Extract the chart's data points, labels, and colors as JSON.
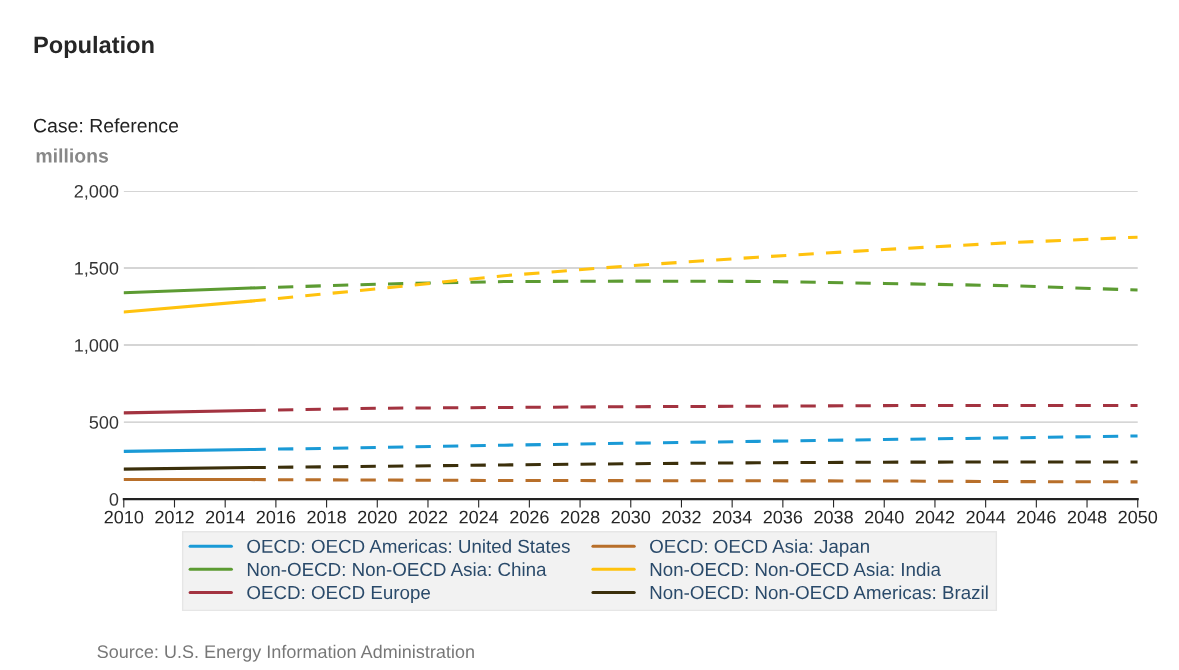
{
  "chart_data": {
    "type": "line",
    "title": "Population",
    "subtitle": "Case: Reference",
    "ylabel": "millions",
    "annotations": [
      "Source: U.S. Energy Information Administration"
    ],
    "xlim": [
      2010,
      2050
    ],
    "xticks": [
      2010,
      2012,
      2014,
      2016,
      2018,
      2020,
      2022,
      2024,
      2026,
      2028,
      2030,
      2032,
      2034,
      2036,
      2038,
      2040,
      2042,
      2044,
      2046,
      2048,
      2050
    ],
    "ylim": [
      0,
      2000
    ],
    "yticks": [
      0,
      {
        "value": 500,
        "label": "500"
      },
      {
        "value": 1000,
        "label": "1,000"
      },
      {
        "value": 1500,
        "label": "1,500"
      },
      {
        "value": 2000,
        "label": "2,000"
      }
    ],
    "grid": "y",
    "legend": "bottom",
    "marker": "none",
    "series": [
      {
        "name": "OECD: OECD Americas: United States",
        "color": "#1a9ad6",
        "line_style": "solid",
        "x": [
          2010,
          2015
        ],
        "values": [
          310,
          322
        ]
      },
      {
        "name": "OECD: OECD Asia: Japan",
        "color": "#b86f2a",
        "line_style": "solid",
        "x": [
          2010,
          2015
        ],
        "values": [
          128,
          127
        ]
      },
      {
        "name": "Non-OECD: Non-OECD Asia: China",
        "color": "#5c9b32",
        "line_style": "solid",
        "x": [
          2010,
          2015
        ],
        "values": [
          1340,
          1370
        ]
      },
      {
        "name": "Non-OECD: Non-OECD Asia: India",
        "color": "#ffc20e",
        "line_style": "solid",
        "x": [
          2010,
          2015
        ],
        "values": [
          1215,
          1285
        ]
      },
      {
        "name": "OECD: OECD Europe",
        "color": "#a33340",
        "line_style": "solid",
        "x": [
          2010,
          2015
        ],
        "values": [
          560,
          575
        ]
      },
      {
        "name": "Non-OECD: Non-OECD Americas: Brazil",
        "color": "#3b2f0b",
        "line_style": "solid",
        "x": [
          2010,
          2015
        ],
        "values": [
          195,
          205
        ]
      },
      {
        "color": "#1a9ad6",
        "line_style": "dashed",
        "x": [
          2015,
          2020,
          2025,
          2030,
          2035,
          2040,
          2045,
          2050
        ],
        "values": [
          322,
          335,
          350,
          363,
          375,
          387,
          398,
          410
        ]
      },
      {
        "color": "#b86f2a",
        "line_style": "dashed",
        "x": [
          2015,
          2020,
          2025,
          2030,
          2035,
          2040,
          2045,
          2050
        ],
        "values": [
          127,
          124,
          121,
          120,
          119,
          118,
          114,
          112
        ]
      },
      {
        "color": "#5c9b32",
        "line_style": "dashed",
        "x": [
          2015,
          2020,
          2025,
          2030,
          2035,
          2040,
          2045,
          2050
        ],
        "values": [
          1370,
          1395,
          1412,
          1415,
          1413,
          1400,
          1385,
          1357
        ]
      },
      {
        "color": "#ffc20e",
        "line_style": "dashed",
        "x": [
          2015,
          2020,
          2025,
          2030,
          2035,
          2040,
          2045,
          2050
        ],
        "values": [
          1285,
          1365,
          1450,
          1515,
          1570,
          1620,
          1665,
          1700
        ]
      },
      {
        "color": "#a33340",
        "line_style": "dashed",
        "x": [
          2015,
          2020,
          2025,
          2030,
          2035,
          2040,
          2045,
          2050
        ],
        "values": [
          575,
          590,
          595,
          600,
          603,
          607,
          608,
          608
        ]
      },
      {
        "color": "#3b2f0b",
        "line_style": "dashed",
        "x": [
          2015,
          2020,
          2025,
          2030,
          2035,
          2040,
          2045,
          2050
        ],
        "values": [
          205,
          213,
          222,
          230,
          236,
          240,
          241,
          241
        ]
      }
    ]
  }
}
